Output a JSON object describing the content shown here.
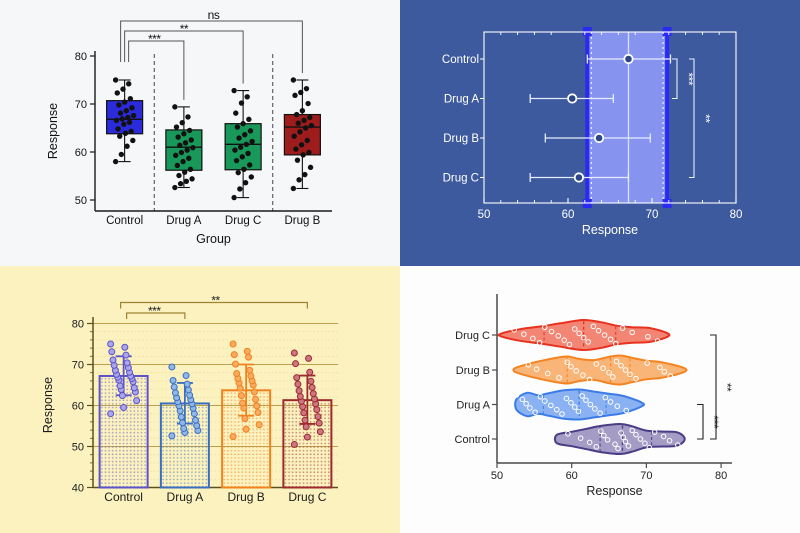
{
  "chart_data": {
    "datasets": {
      "Control": {
        "values": [
          58,
          59.5,
          61.2,
          62.4,
          63.3,
          63.9,
          64.3,
          64.8,
          65.8,
          66.2,
          66.6,
          66.9,
          67.2,
          67.6,
          68.1,
          68.6,
          69.2,
          69.8,
          70.4,
          71.1,
          72.3,
          73.1,
          74.2,
          75
        ],
        "min": 58,
        "q1": 63.8,
        "median": 66.8,
        "q3": 70.7,
        "max": 75,
        "mean": 67.2,
        "sd_low": 62.5,
        "sd_high": 72.0
      },
      "Drug A": {
        "values": [
          52.6,
          53.4,
          53.9,
          54.4,
          55.1,
          55.8,
          56.4,
          57.2,
          58,
          58.7,
          59.3,
          59.9,
          60.4,
          60.9,
          61.4,
          61.9,
          62.5,
          63.1,
          63.8,
          64.5,
          65.2,
          66.1,
          67.3,
          69.4
        ],
        "min": 52.6,
        "q1": 56.2,
        "median": 61.0,
        "q3": 64.6,
        "max": 69.4,
        "mean": 60.5,
        "sd_low": 55.6,
        "sd_high": 65.5
      },
      "Drug B": {
        "values": [
          52.4,
          54.2,
          55.3,
          56.8,
          58.3,
          59.4,
          59.9,
          60.6,
          61.5,
          62.4,
          63.3,
          64.2,
          65,
          65.5,
          66,
          66.6,
          67.2,
          67.8,
          68.6,
          70.1,
          71.8,
          72.4,
          73.2,
          75
        ],
        "min": 52.4,
        "q1": 59.4,
        "median": 65.2,
        "q3": 67.8,
        "max": 75,
        "mean": 63.7,
        "sd_low": 57.5,
        "sd_high": 70.0
      },
      "Drug C": {
        "values": [
          50.5,
          52.3,
          53.6,
          54.8,
          55.7,
          56.4,
          57.3,
          58.2,
          59,
          59.7,
          60.4,
          61,
          61.6,
          62.2,
          62.9,
          63.6,
          64.4,
          65.2,
          65.9,
          66.8,
          68.1,
          70.2,
          71.5,
          72.8
        ],
        "min": 50.5,
        "q1": 56.3,
        "median": 61.6,
        "q3": 65.9,
        "max": 72.8,
        "mean": 61.3,
        "sd_low": 55.5,
        "sd_high": 67.3
      }
    },
    "panels": [
      {
        "id": "grouped-boxplot",
        "type": "box",
        "position": "top-left",
        "background": "#f6f7f9",
        "axis_color": "#1a1a1a",
        "text_color": "#111111",
        "xlabel": "Group",
        "ylabel": "Response",
        "yticks": [
          50,
          60,
          70,
          80
        ],
        "ylim": [
          47,
          81
        ],
        "point_color": "#111111",
        "separator_color": "#444444",
        "groups": [
          {
            "name": "Control",
            "ref": "Control",
            "fill": "#2b2bdc"
          },
          {
            "name": "Drug A",
            "ref": "Drug A",
            "fill": "#18995a"
          },
          {
            "name": "Drug C",
            "ref": "Drug C",
            "fill": "#18995a"
          },
          {
            "name": "Drug B",
            "ref": "Drug B",
            "fill": "#9e1c1c"
          }
        ],
        "significance": [
          {
            "a": 0,
            "b": 1,
            "label": "***"
          },
          {
            "a": 0,
            "b": 2,
            "label": "**"
          },
          {
            "a": 0,
            "b": 3,
            "label": "ns"
          }
        ]
      },
      {
        "id": "forest-errorbars",
        "type": "errorbar-horizontal",
        "position": "top-right",
        "background": "#3d5a9e",
        "text_color": "#ffffff",
        "frame_color": "#ffffff",
        "xlabel": "Response",
        "xticks": [
          50,
          60,
          70,
          80
        ],
        "xlim": [
          50,
          80
        ],
        "errorbar_color": "#e6ecfc",
        "marker_fill": "#2c4687",
        "band": {
          "from": 62.3,
          "to": 71.8,
          "fill": "#8794ef",
          "edge_color": "#2a2af2",
          "edge_dash_color": "#ffffff"
        },
        "reference_line": 67.2,
        "rows": [
          {
            "name": "Control",
            "mean": 67.2,
            "ci_low": 62.3,
            "ci_high": 72.2
          },
          {
            "name": "Drug A",
            "mean": 60.5,
            "ci_low": 55.5,
            "ci_high": 65.4
          },
          {
            "name": "Drug B",
            "mean": 63.7,
            "ci_low": 57.3,
            "ci_high": 69.8
          },
          {
            "name": "Drug C",
            "mean": 61.3,
            "ci_low": 55.5,
            "ci_high": 67.2
          }
        ],
        "significance": [
          {
            "a": 0,
            "b": 1,
            "label": "***"
          },
          {
            "a": 0,
            "b": 3,
            "label": "**"
          }
        ]
      },
      {
        "id": "bar-chart",
        "type": "bar",
        "position": "bottom-left",
        "background": "#fcf2c0",
        "axis_color": "#5c5020",
        "text_color": "#1a1a1a",
        "grid_major_color": "#bd9f4e",
        "grid_minor_color": "#eedc9a",
        "bracket_color": "#9c8430",
        "star_color": "#1a1a1a",
        "ylabel": "Response",
        "yticks": [
          40,
          50,
          60,
          70,
          80
        ],
        "ylim": [
          40,
          80
        ],
        "bars": [
          {
            "name": "Control",
            "ref": "Control",
            "outline": "#5b53c8",
            "point_fill": "#aaa6ea"
          },
          {
            "name": "Drug A",
            "ref": "Drug A",
            "outline": "#3a6fc0",
            "point_fill": "#90b7e8"
          },
          {
            "name": "Drug B",
            "ref": "Drug B",
            "outline": "#f0821e",
            "point_fill": "#f9ab62"
          },
          {
            "name": "Drug C",
            "ref": "Drug C",
            "outline": "#9c2a2e",
            "point_fill": "#cc7583"
          }
        ],
        "significance": [
          {
            "a": 0,
            "b": 1,
            "label": "***"
          },
          {
            "a": 0,
            "b": 3,
            "label": "**"
          }
        ]
      },
      {
        "id": "violin-plot",
        "type": "violin-horizontal",
        "position": "bottom-right",
        "background": "#fdfdfe",
        "axis_color": "#4a4a4a",
        "text_color": "#222222",
        "bracket_color": "#222222",
        "point_stroke": "#ffffff",
        "xlabel": "Response",
        "xticks": [
          50,
          60,
          70,
          80
        ],
        "xlim": [
          50,
          80
        ],
        "rows": [
          {
            "name": "Drug C",
            "ref": "Drug C",
            "outline": "#e8321f",
            "fill": "#f28573",
            "profile": [
              [
                50.5,
                0.08
              ],
              [
                53,
                0.38
              ],
              [
                56,
                0.58
              ],
              [
                58.5,
                0.78
              ],
              [
                61.5,
                1.0
              ],
              [
                64,
                0.85
              ],
              [
                66,
                0.62
              ],
              [
                68,
                0.52
              ],
              [
                70.5,
                0.46
              ],
              [
                72.8,
                0.12
              ]
            ]
          },
          {
            "name": "Drug B",
            "ref": "Drug B",
            "outline": "#f5831f",
            "fill": "#f8b577",
            "profile": [
              [
                52.4,
                0.12
              ],
              [
                54,
                0.38
              ],
              [
                56,
                0.62
              ],
              [
                58,
                0.82
              ],
              [
                59.5,
                0.9
              ],
              [
                61,
                0.74
              ],
              [
                63,
                0.66
              ],
              [
                65,
                0.88
              ],
              [
                66.5,
                0.97
              ],
              [
                68,
                0.82
              ],
              [
                70,
                0.62
              ],
              [
                72,
                0.52
              ],
              [
                75,
                0.14
              ]
            ]
          },
          {
            "name": "Drug A",
            "ref": "Drug A",
            "outline": "#3b7ce8",
            "fill": "#8ab2f2",
            "profile": [
              [
                52.6,
                0.34
              ],
              [
                54,
                0.78
              ],
              [
                55.5,
                0.62
              ],
              [
                57,
                0.76
              ],
              [
                59,
                0.95
              ],
              [
                61,
                1.0
              ],
              [
                63,
                0.86
              ],
              [
                65,
                0.72
              ],
              [
                67,
                0.56
              ],
              [
                69.4,
                0.12
              ]
            ]
          },
          {
            "name": "Control",
            "ref": "Control",
            "outline": "#4a3c85",
            "fill": "#a49cc5",
            "profile": [
              [
                58,
                0.28
              ],
              [
                60,
                0.48
              ],
              [
                62,
                0.68
              ],
              [
                64,
                0.88
              ],
              [
                66.5,
                1.0
              ],
              [
                68,
                0.86
              ],
              [
                70,
                0.56
              ],
              [
                72,
                0.5
              ],
              [
                74,
                0.46
              ],
              [
                75,
                0.16
              ]
            ]
          }
        ],
        "significance": [
          {
            "a": 2,
            "b": 3,
            "label": "***"
          },
          {
            "a": 0,
            "b": 3,
            "label": "**"
          }
        ]
      }
    ]
  }
}
